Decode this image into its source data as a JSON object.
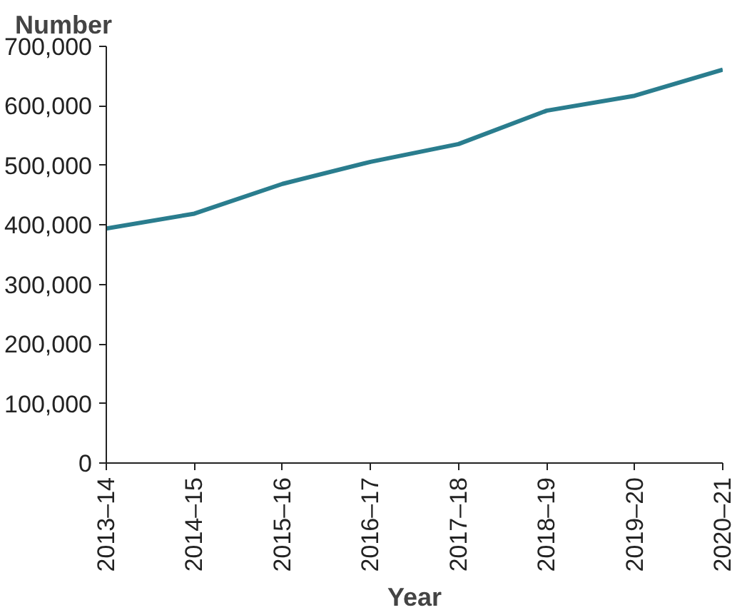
{
  "chart_data": {
    "type": "line",
    "ylabel": "Number",
    "xlabel": "Year",
    "categories": [
      "2013–14",
      "2014–15",
      "2015–16",
      "2016–17",
      "2017–18",
      "2018–19",
      "2019–20",
      "2020–21"
    ],
    "series": [
      {
        "color": "#2a7d8e",
        "values": [
          394000,
          419000,
          469000,
          506000,
          536000,
          592000,
          617000,
          661000
        ]
      }
    ],
    "ylim": [
      0,
      700000
    ],
    "yticks": [
      {
        "value": 0,
        "label": "0"
      },
      {
        "value": 100000,
        "label": "100,000"
      },
      {
        "value": 200000,
        "label": "200,000"
      },
      {
        "value": 300000,
        "label": "300,000"
      },
      {
        "value": 400000,
        "label": "400,000"
      },
      {
        "value": 500000,
        "label": "500,000"
      },
      {
        "value": 600000,
        "label": "600,000"
      },
      {
        "value": 700000,
        "label": "700,000"
      }
    ],
    "grid": false,
    "marker": "none",
    "line_style": "solid"
  }
}
